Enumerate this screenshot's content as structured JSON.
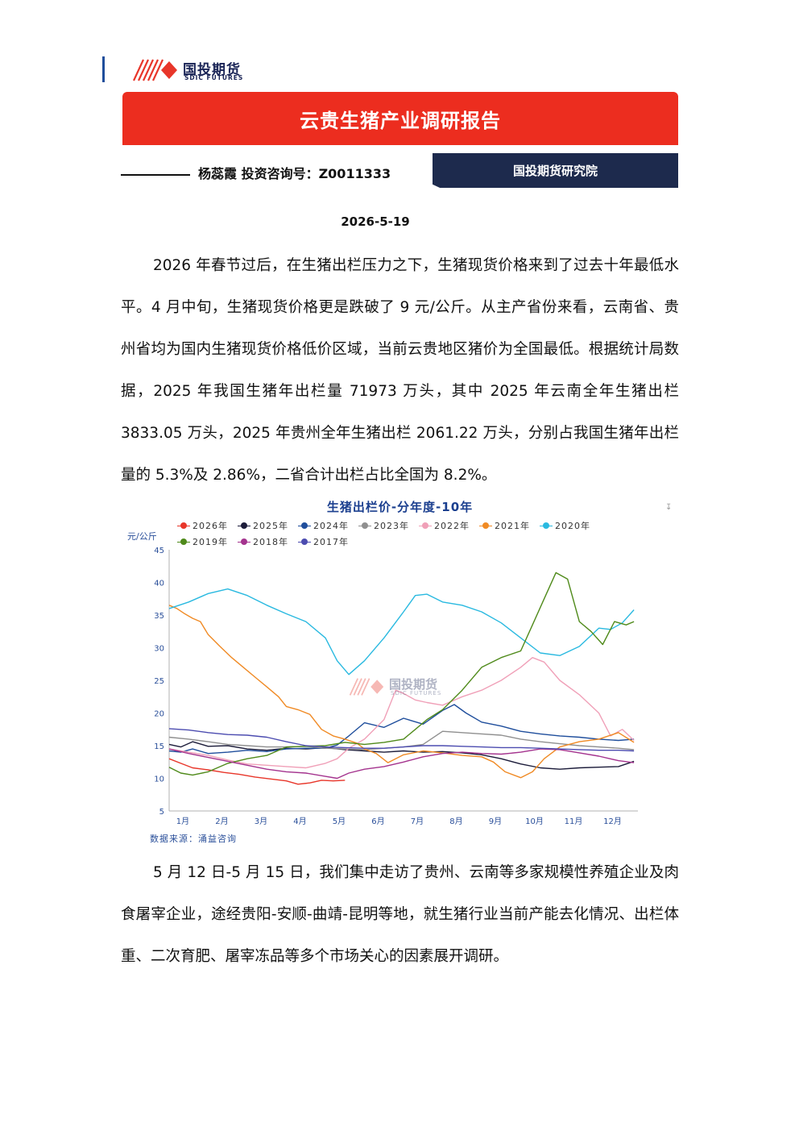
{
  "header": {
    "logo_cn": "国投期货",
    "logo_en": "SDIC FUTURES",
    "title": "云贵生猪产业调研报告",
    "author_line": "杨蕊霞 投资咨询号：Z0011333",
    "institute": "国投期货研究院",
    "date": "2026-5-19"
  },
  "body": {
    "paragraph1": "2026 年春节过后，在生猪出栏压力之下，生猪现货价格来到了过去十年最低水平。4 月中旬，生猪现货价格更是跌破了 9 元/公斤。从主产省份来看，云南省、贵州省均为国内生猪现货价格低价区域，当前云贵地区猪价为全国最低。根据统计局数据，2025 年我国生猪年出栏量 71973 万头，其中 2025 年云南全年生猪出栏 3833.05 万头，2025 年贵州全年生猪出栏 2061.22 万头，分别占我国生猪年出栏量的 5.3%及 2.86%，二省合计出栏占比全国为 8.2%。",
    "paragraph2": "5 月 12 日-5 月 15 日，我们集中走访了贵州、云南等多家规模性养殖企业及肉食屠宰企业，途经贵阳-安顺-曲靖-昆明等地，就生猪行业当前产能去化情况、出栏体重、二次育肥、屠宰冻品等多个市场关心的因素展开调研。"
  },
  "chart_data": {
    "type": "line",
    "title": "生猪出栏价-分年度-10年",
    "ylabel": "元/公斤",
    "source": "数据来源：涌益咨询",
    "watermark_cn": "国投期货",
    "watermark_en": "SDIC FUTURES",
    "ylim": [
      5,
      45
    ],
    "yticks": [
      5,
      10,
      15,
      20,
      25,
      30,
      35,
      40,
      45
    ],
    "xlim": [
      0,
      12
    ],
    "categories": [
      "1月",
      "2月",
      "3月",
      "4月",
      "5月",
      "6月",
      "7月",
      "8月",
      "9月",
      "10月",
      "11月",
      "12月"
    ],
    "grid": false,
    "legend_position": "top",
    "series": [
      {
        "name": "2026年",
        "color": "#e8362a",
        "x": [
          0,
          0.3,
          0.6,
          1,
          1.4,
          1.8,
          2.2,
          2.6,
          3,
          3.3,
          3.6,
          3.9,
          4.2,
          4.5
        ],
        "y": [
          13.0,
          12.3,
          11.6,
          11.3,
          10.9,
          10.6,
          10.2,
          9.9,
          9.6,
          9.1,
          9.3,
          9.7,
          9.6,
          9.7
        ]
      },
      {
        "name": "2025年",
        "color": "#1c1c3a",
        "x": [
          0,
          0.3,
          0.6,
          1,
          1.5,
          2,
          2.5,
          3,
          3.5,
          4,
          4.5,
          5,
          5.5,
          6,
          6.5,
          7,
          7.5,
          8,
          8.5,
          9,
          9.5,
          10,
          10.5,
          11,
          11.5,
          11.9
        ],
        "y": [
          15.2,
          14.8,
          15.6,
          14.9,
          15.0,
          14.5,
          14.3,
          14.6,
          14.5,
          14.7,
          14.4,
          14.2,
          14.0,
          14.2,
          14.0,
          14.1,
          13.9,
          13.6,
          13.0,
          12.2,
          11.6,
          11.4,
          11.6,
          11.7,
          11.8,
          12.6
        ]
      },
      {
        "name": "2024年",
        "color": "#1f4e9c",
        "x": [
          0,
          0.3,
          0.6,
          1,
          1.5,
          2,
          2.5,
          3,
          3.5,
          4,
          4.3,
          4.6,
          5,
          5.5,
          6,
          6.5,
          7,
          7.3,
          7.6,
          8,
          8.5,
          9,
          9.5,
          10,
          10.5,
          11,
          11.5,
          11.9
        ],
        "y": [
          14.2,
          14.0,
          14.5,
          13.8,
          14.0,
          14.3,
          14.1,
          14.5,
          14.6,
          14.6,
          15.1,
          16.5,
          18.5,
          17.8,
          19.2,
          18.3,
          20.4,
          21.3,
          20.0,
          18.6,
          18.0,
          17.2,
          16.8,
          16.5,
          16.3,
          16.0,
          15.8,
          16.0
        ]
      },
      {
        "name": "2023年",
        "color": "#8f8f8f",
        "x": [
          0,
          0.5,
          1,
          1.5,
          2,
          2.5,
          3,
          3.5,
          4,
          4.5,
          5,
          5.5,
          6,
          6.5,
          7,
          7.5,
          8,
          8.5,
          9,
          9.5,
          10,
          10.5,
          11,
          11.5,
          11.9
        ],
        "y": [
          16.3,
          16.0,
          15.6,
          15.2,
          15.0,
          14.8,
          14.8,
          14.9,
          14.6,
          14.5,
          14.4,
          14.6,
          14.8,
          15.2,
          17.2,
          17.0,
          16.8,
          16.6,
          16.0,
          15.6,
          15.3,
          15.0,
          14.8,
          14.6,
          14.4
        ]
      },
      {
        "name": "2022年",
        "color": "#f0a0b8",
        "x": [
          0,
          0.5,
          1,
          1.5,
          2,
          2.5,
          3,
          3.5,
          4,
          4.3,
          4.6,
          5,
          5.5,
          5.8,
          6,
          6.3,
          6.6,
          7,
          7.5,
          8,
          8.5,
          9,
          9.3,
          9.6,
          10,
          10.5,
          11,
          11.3,
          11.6,
          11.9
        ],
        "y": [
          14.5,
          14.0,
          13.5,
          12.8,
          12.2,
          12.0,
          11.8,
          11.6,
          12.3,
          13.0,
          14.6,
          16.0,
          19.0,
          23.5,
          23.0,
          22.0,
          21.6,
          21.2,
          22.5,
          23.5,
          25.0,
          27.0,
          28.5,
          27.8,
          25.0,
          22.8,
          20.0,
          16.5,
          17.5,
          15.8
        ]
      },
      {
        "name": "2021年",
        "color": "#f08a24",
        "x": [
          0,
          0.2,
          0.4,
          0.6,
          0.8,
          1,
          1.3,
          1.6,
          1.9,
          2.2,
          2.5,
          2.8,
          3,
          3.3,
          3.6,
          3.9,
          4.2,
          4.5,
          4.8,
          5,
          5.3,
          5.6,
          6,
          6.5,
          7,
          7.5,
          8,
          8.3,
          8.6,
          9,
          9.3,
          9.6,
          10,
          10.5,
          11,
          11.5,
          11.9
        ],
        "y": [
          36.5,
          36.0,
          35.2,
          34.5,
          34.0,
          32.0,
          30.2,
          28.5,
          27.0,
          25.5,
          24.0,
          22.5,
          21.0,
          20.5,
          19.8,
          17.5,
          16.5,
          16.0,
          15.4,
          14.5,
          13.8,
          12.4,
          13.6,
          14.2,
          13.9,
          13.5,
          13.3,
          12.5,
          11.0,
          10.1,
          11.0,
          13.0,
          14.8,
          15.6,
          16.0,
          17.0,
          15.5
        ]
      },
      {
        "name": "2020年",
        "color": "#29b9e0",
        "x": [
          0,
          0.5,
          1,
          1.5,
          2,
          2.5,
          3,
          3.5,
          4,
          4.3,
          4.6,
          5,
          5.5,
          6,
          6.3,
          6.6,
          7,
          7.5,
          8,
          8.5,
          9,
          9.5,
          10,
          10.5,
          11,
          11.3,
          11.6,
          11.9
        ],
        "y": [
          36.0,
          37.0,
          38.3,
          39.0,
          38.0,
          36.5,
          35.2,
          34.0,
          31.5,
          28.0,
          25.9,
          28.0,
          31.5,
          35.5,
          38.0,
          38.2,
          37.0,
          36.5,
          35.5,
          33.8,
          31.5,
          29.2,
          28.8,
          30.2,
          33.0,
          32.8,
          33.8,
          35.8
        ]
      },
      {
        "name": "2019年",
        "color": "#4f8a1a",
        "x": [
          0,
          0.3,
          0.6,
          1,
          1.5,
          2,
          2.5,
          3,
          3.5,
          4,
          4.5,
          5,
          5.5,
          6,
          6.3,
          6.6,
          7,
          7.5,
          8,
          8.5,
          9,
          9.3,
          9.6,
          9.9,
          10.2,
          10.5,
          10.8,
          11.1,
          11.4,
          11.7,
          11.9
        ],
        "y": [
          11.7,
          10.8,
          10.5,
          11.0,
          12.3,
          13.0,
          13.5,
          14.8,
          14.9,
          15.0,
          15.5,
          15.2,
          15.5,
          16.0,
          17.5,
          19.0,
          20.5,
          23.5,
          27.0,
          28.5,
          29.5,
          33.5,
          37.5,
          41.5,
          40.5,
          34.0,
          32.5,
          30.5,
          34.0,
          33.5,
          34.0
        ]
      },
      {
        "name": "2018年",
        "color": "#a4338e",
        "x": [
          0,
          0.5,
          1,
          1.5,
          2,
          2.5,
          3,
          3.5,
          4,
          4.3,
          4.6,
          5,
          5.5,
          6,
          6.5,
          7,
          7.5,
          8,
          8.5,
          9,
          9.5,
          10,
          10.5,
          11,
          11.5,
          11.9
        ],
        "y": [
          14.5,
          13.8,
          13.2,
          12.6,
          12.0,
          11.4,
          11.0,
          10.8,
          10.3,
          10.0,
          10.8,
          11.4,
          11.8,
          12.5,
          13.3,
          13.8,
          14.0,
          13.8,
          13.7,
          14.0,
          14.5,
          14.4,
          13.9,
          13.4,
          12.7,
          12.4
        ]
      },
      {
        "name": "2017年",
        "color": "#4c4cb0",
        "x": [
          0,
          0.5,
          1,
          1.5,
          2,
          2.5,
          3,
          3.5,
          4,
          4.5,
          5,
          5.5,
          6,
          6.5,
          7,
          7.5,
          8,
          8.5,
          9,
          9.5,
          10,
          10.5,
          11,
          11.5,
          11.9
        ],
        "y": [
          17.6,
          17.4,
          17.0,
          16.7,
          16.6,
          16.3,
          15.6,
          15.0,
          14.8,
          14.7,
          14.6,
          14.6,
          14.8,
          15.0,
          15.0,
          14.9,
          14.8,
          14.7,
          14.7,
          14.6,
          14.5,
          14.4,
          14.3,
          14.3,
          14.2
        ]
      }
    ]
  }
}
